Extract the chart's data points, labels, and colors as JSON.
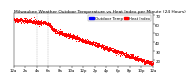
{
  "title": "Milwaukee Weather Outdoor Temperature vs Heat Index per Minute (24 Hours)",
  "bg_color": "#ffffff",
  "plot_bg": "#ffffff",
  "scatter_color": "#ff0000",
  "legend_color1": "#0000ff",
  "legend_color2": "#ff0000",
  "legend_label1": "Outdoor Temp",
  "legend_label2": "Heat Index",
  "ylim": [
    14,
    72
  ],
  "xlim": [
    0,
    1440
  ],
  "yticks": [
    20,
    30,
    40,
    50,
    60,
    70
  ],
  "xtick_positions": [
    0,
    120,
    240,
    360,
    480,
    600,
    720,
    840,
    960,
    1080,
    1200,
    1320,
    1440
  ],
  "xtick_labels": [
    "12a",
    "2a",
    "4a",
    "6a",
    "8a",
    "10a",
    "12p",
    "2p",
    "4p",
    "6p",
    "8p",
    "10p",
    "12a"
  ],
  "vline1": 240,
  "vline2": 360,
  "title_fontsize": 3.2,
  "tick_fontsize": 2.8,
  "legend_fontsize": 2.8,
  "marker_size": 0.5,
  "line_width": 0.3
}
